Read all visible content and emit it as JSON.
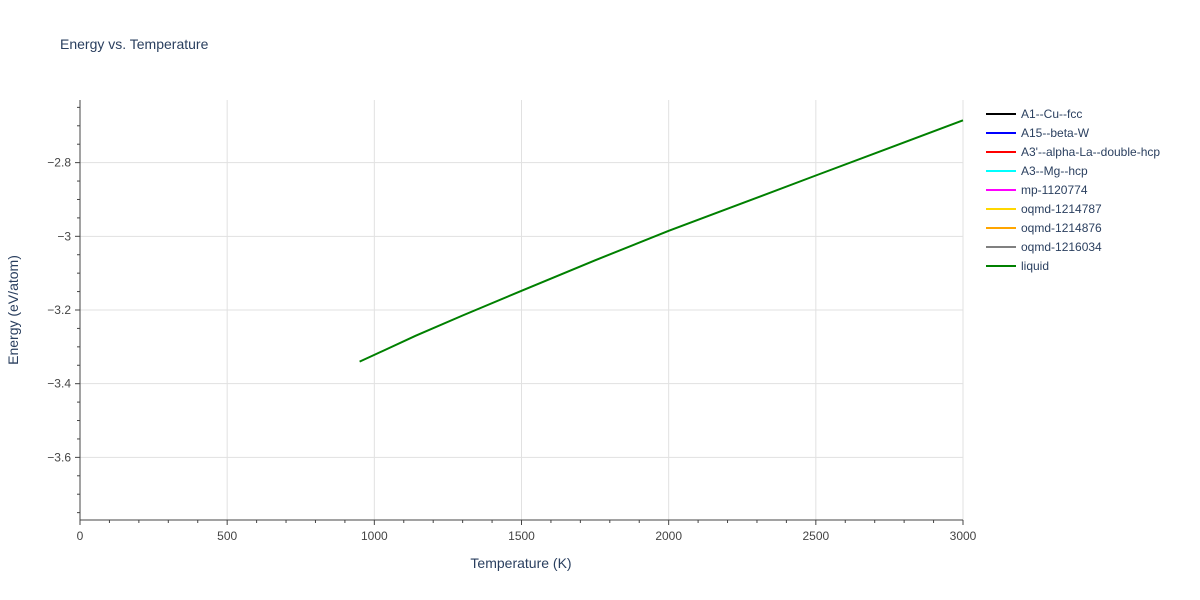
{
  "chart_data": {
    "type": "line",
    "title": "Energy vs. Temperature",
    "xlabel": "Temperature (K)",
    "ylabel": "Energy (eV/atom)",
    "xlim": [
      0,
      3000
    ],
    "ylim": [
      -3.77,
      -2.63
    ],
    "xticks": [
      0,
      500,
      1000,
      1500,
      2000,
      2500,
      3000
    ],
    "xtick_labels": [
      "0",
      "500",
      "1000",
      "1500",
      "2000",
      "2500",
      "3000"
    ],
    "yticks": [
      -2.8,
      -3.0,
      -3.2,
      -3.4,
      -3.6
    ],
    "ytick_labels": [
      "−2.8",
      "−3",
      "−3.2",
      "−3.4",
      "−3.6"
    ],
    "grid": true,
    "legend_position": "right",
    "series": [
      {
        "name": "A1--Cu--fcc",
        "color": "#000000",
        "x": [],
        "y": []
      },
      {
        "name": "A15--beta-W",
        "color": "#0000ff",
        "x": [],
        "y": []
      },
      {
        "name": "A3'--alpha-La--double-hcp",
        "color": "#ff0000",
        "x": [],
        "y": []
      },
      {
        "name": "A3--Mg--hcp",
        "color": "#00ffff",
        "x": [],
        "y": []
      },
      {
        "name": "mp-1120774",
        "color": "#ff00ff",
        "x": [],
        "y": []
      },
      {
        "name": "oqmd-1214787",
        "color": "#ffd700",
        "x": [],
        "y": []
      },
      {
        "name": "oqmd-1214876",
        "color": "#ffa500",
        "x": [],
        "y": []
      },
      {
        "name": "oqmd-1216034",
        "color": "#808080",
        "x": [],
        "y": []
      },
      {
        "name": "liquid",
        "color": "#008000",
        "x": [
          950,
          1000,
          1140,
          1300,
          1500,
          1750,
          2000,
          2250,
          2500,
          2750,
          3000
        ],
        "y": [
          -3.34,
          -3.322,
          -3.27,
          -3.215,
          -3.148,
          -3.065,
          -2.985,
          -2.91,
          -2.835,
          -2.76,
          -2.685
        ]
      }
    ]
  }
}
